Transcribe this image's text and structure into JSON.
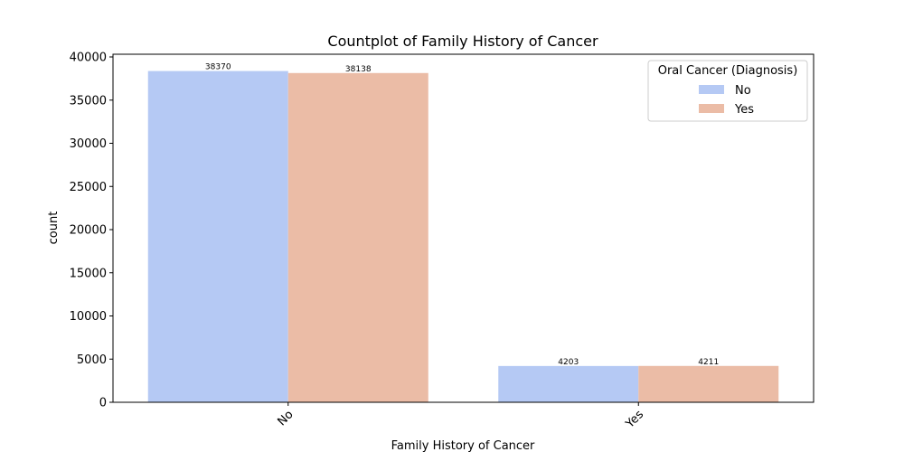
{
  "chart_data": {
    "type": "bar",
    "title": "Countplot of Family History of Cancer",
    "xlabel": "Family History of Cancer",
    "ylabel": "count",
    "categories": [
      "No",
      "Yes"
    ],
    "series": [
      {
        "name": "No",
        "values": [
          38370,
          4203
        ],
        "color": "#b5c9f4"
      },
      {
        "name": "Yes",
        "values": [
          38138,
          4211
        ],
        "color": "#ebbca6"
      }
    ],
    "yticks": [
      0,
      5000,
      10000,
      15000,
      20000,
      25000,
      30000,
      35000,
      40000
    ],
    "ylim": [
      0,
      40000
    ],
    "legend": {
      "title": "Oral Cancer (Diagnosis)",
      "placement": "top-right"
    },
    "grid": false
  }
}
